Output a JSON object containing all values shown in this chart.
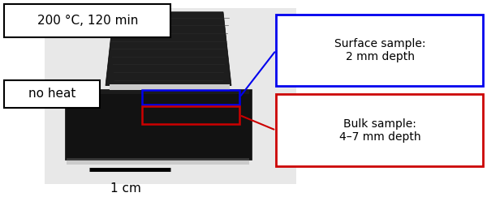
{
  "figsize": [
    6.0,
    2.43
  ],
  "dpi": 100,
  "bg_color": "#ffffff",
  "label_200C": "200 °C, 120 min",
  "label_noheat": "no heat",
  "label_surface": "Surface sample:\n2 mm depth",
  "label_bulk": "Bulk sample:\n4–7 mm depth",
  "label_scale": "1 cm",
  "blue_color": "#0000ee",
  "red_color": "#cc0000",
  "black": "#000000",
  "white": "#ffffff",
  "light_gray": "#e0e0e0",
  "dark_silicone": "#1a1a1a",
  "fontsize_label": 10,
  "fontsize_noheat": 11,
  "fontsize_200C": 11,
  "fontsize_scale": 11
}
